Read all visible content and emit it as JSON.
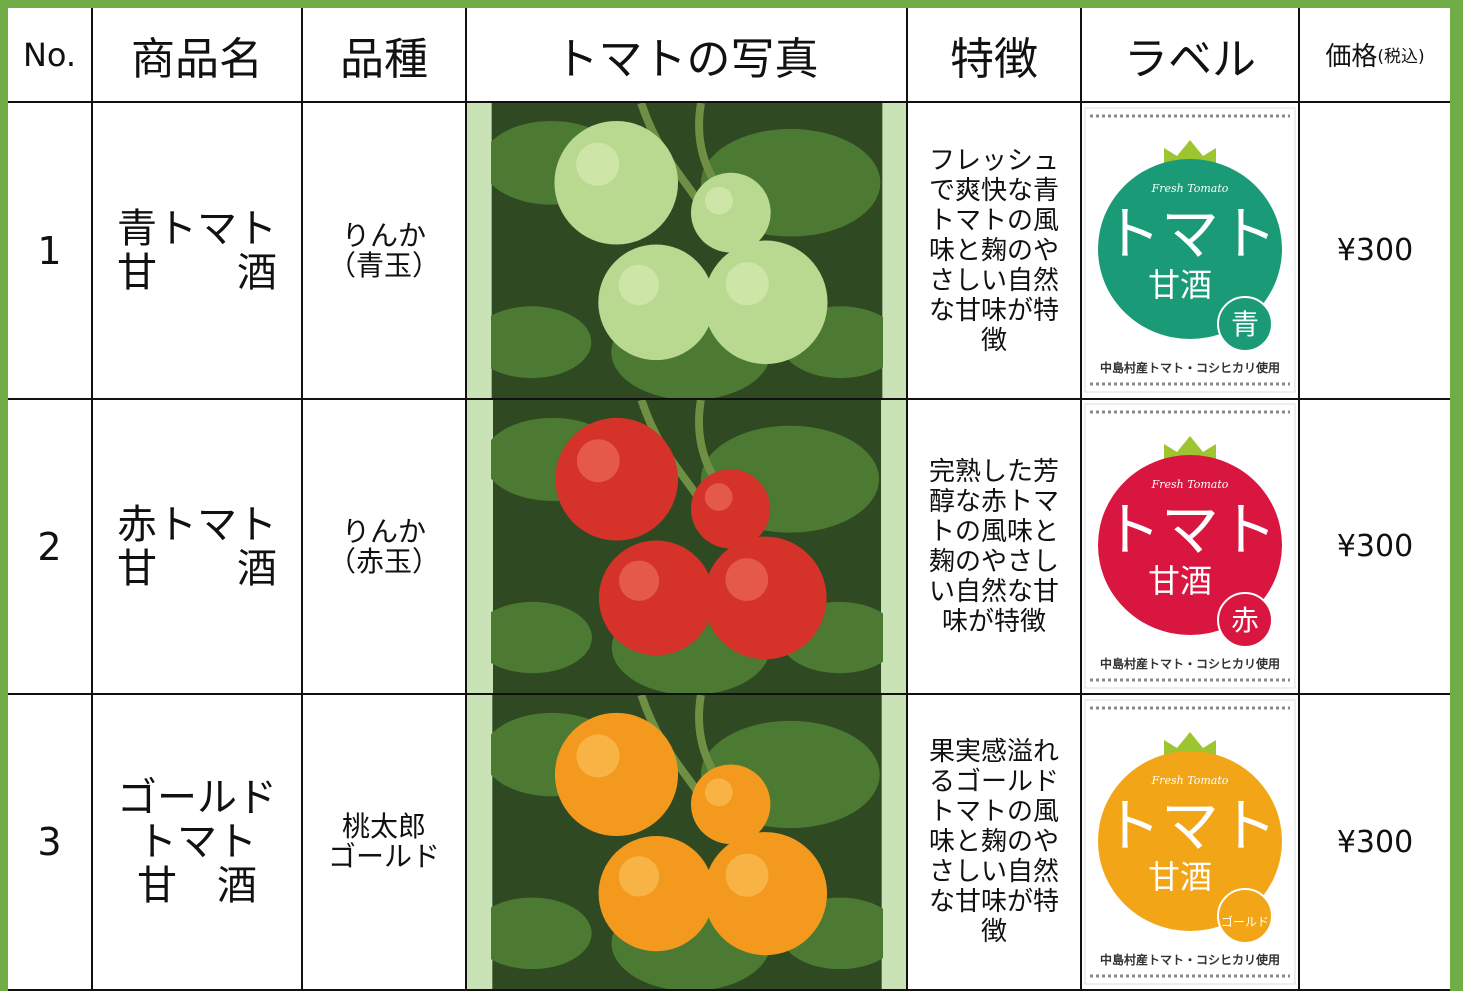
{
  "header": {
    "no": "No.",
    "name": "商品名",
    "variety": "品種",
    "photo": "トマトの写真",
    "feature": "特徴",
    "label": "ラベル",
    "price": {
      "main": "価格",
      "note": "(税込)"
    }
  },
  "rows": [
    {
      "no": 1,
      "name": [
        "青トマト",
        "甘　　酒"
      ],
      "variety": [
        "りんか",
        "（青玉）"
      ],
      "feature": [
        "フレッシュ",
        "で爽快な青",
        "トマトの風",
        "味と麹のや",
        "さしい自然",
        "な甘味が特",
        "徴"
      ],
      "label": {
        "brand": "Fresh Tomato",
        "title": "トマト",
        "sub": "甘酒",
        "badge": "青",
        "footer": "中島村産トマト・コシヒカリ使用"
      },
      "price": "¥300"
    },
    {
      "no": 2,
      "name": [
        "赤トマト",
        "甘　　酒"
      ],
      "variety": [
        "りんか",
        "（赤玉）"
      ],
      "feature": [
        "完熟した芳",
        "醇な赤トマ",
        "トの風味と",
        "麹のやさし",
        "い自然な甘",
        "味が特徴"
      ],
      "label": {
        "brand": "Fresh Tomato",
        "title": "トマト",
        "sub": "甘酒",
        "badge": "赤",
        "footer": "中島村産トマト・コシヒカリ使用"
      },
      "price": "¥300"
    },
    {
      "no": 3,
      "name": [
        "ゴールド",
        "トマト",
        "甘　酒"
      ],
      "variety": [
        "桃太郎",
        "ゴールド"
      ],
      "feature": [
        "果実感溢れ",
        "るゴールド",
        "トマトの風",
        "味と麹のや",
        "さしい自然",
        "な甘味が特",
        "徴"
      ],
      "label": {
        "brand": "Fresh Tomato",
        "title": "トマト",
        "sub": "甘酒",
        "badge": "ゴールド",
        "footer": "中島村産トマト・コシヒカリ使用"
      },
      "price": "¥300"
    }
  ]
}
